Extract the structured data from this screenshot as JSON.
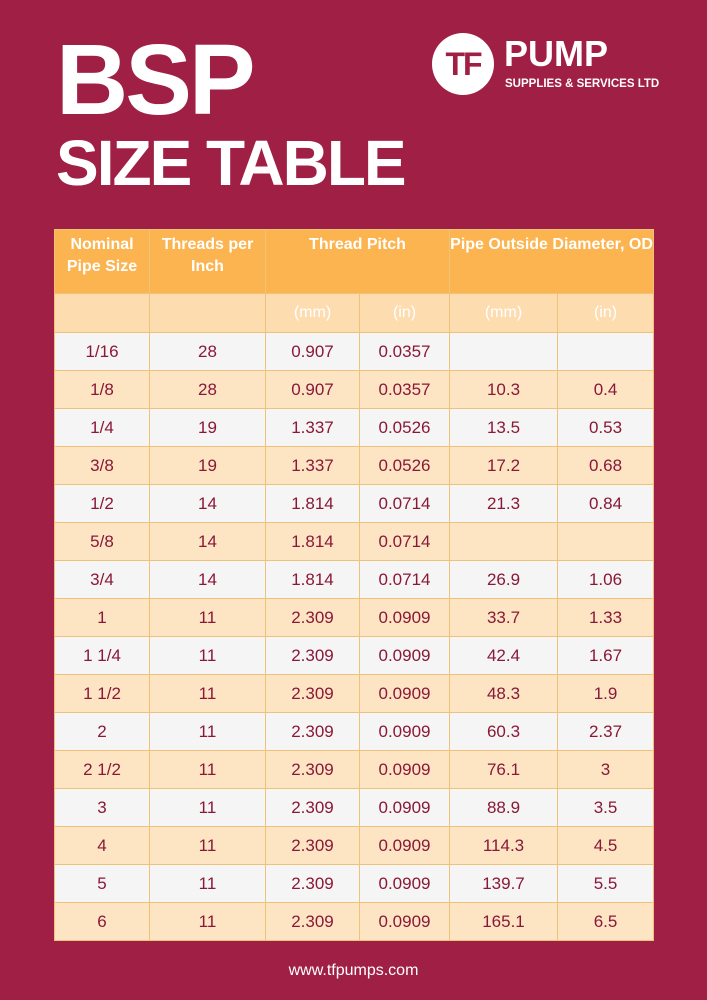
{
  "title": {
    "line1": "BSP",
    "line2": "SIZE TABLE"
  },
  "logo": {
    "mark": "TF",
    "name": "PUMP",
    "tagline": "SUPPLIES & SERVICES LTD"
  },
  "table": {
    "headers": {
      "nominal": "Nominal Pipe Size",
      "threads": "Threads per Inch",
      "pitch": "Thread Pitch",
      "od": "Pipe Outside Diameter, OD",
      "pitch_mm": "(mm)",
      "pitch_in": "(in)",
      "od_mm": "(mm)",
      "od_in": "(in)"
    },
    "rows": [
      [
        "1/16",
        "28",
        "0.907",
        "0.0357",
        "",
        ""
      ],
      [
        "1/8",
        "28",
        "0.907",
        "0.0357",
        "10.3",
        "0.4"
      ],
      [
        "1/4",
        "19",
        "1.337",
        "0.0526",
        "13.5",
        "0.53"
      ],
      [
        "3/8",
        "19",
        "1.337",
        "0.0526",
        "17.2",
        "0.68"
      ],
      [
        "1/2",
        "14",
        "1.814",
        "0.0714",
        "21.3",
        "0.84"
      ],
      [
        "5/8",
        "14",
        "1.814",
        "0.0714",
        "",
        ""
      ],
      [
        "3/4",
        "14",
        "1.814",
        "0.0714",
        "26.9",
        "1.06"
      ],
      [
        "1",
        "11",
        "2.309",
        "0.0909",
        "33.7",
        "1.33"
      ],
      [
        "1 1/4",
        "11",
        "2.309",
        "0.0909",
        "42.4",
        "1.67"
      ],
      [
        "1 1/2",
        "11",
        "2.309",
        "0.0909",
        "48.3",
        "1.9"
      ],
      [
        "2",
        "11",
        "2.309",
        "0.0909",
        "60.3",
        "2.37"
      ],
      [
        "2 1/2",
        "11",
        "2.309",
        "0.0909",
        "76.1",
        "3"
      ],
      [
        "3",
        "11",
        "2.309",
        "0.0909",
        "88.9",
        "3.5"
      ],
      [
        "4",
        "11",
        "2.309",
        "0.0909",
        "114.3",
        "4.5"
      ],
      [
        "5",
        "11",
        "2.309",
        "0.0909",
        "139.7",
        "5.5"
      ],
      [
        "6",
        "11",
        "2.309",
        "0.0909",
        "165.1",
        "6.5"
      ]
    ]
  },
  "footer": {
    "url": "www.tfpumps.com"
  },
  "colors": {
    "background": "#a01f45",
    "header": "#fbb450",
    "subheader": "#fddcb0",
    "row_light": "#f5f5f5",
    "row_tint": "#fde5c4",
    "cell_text": "#8a1838"
  }
}
